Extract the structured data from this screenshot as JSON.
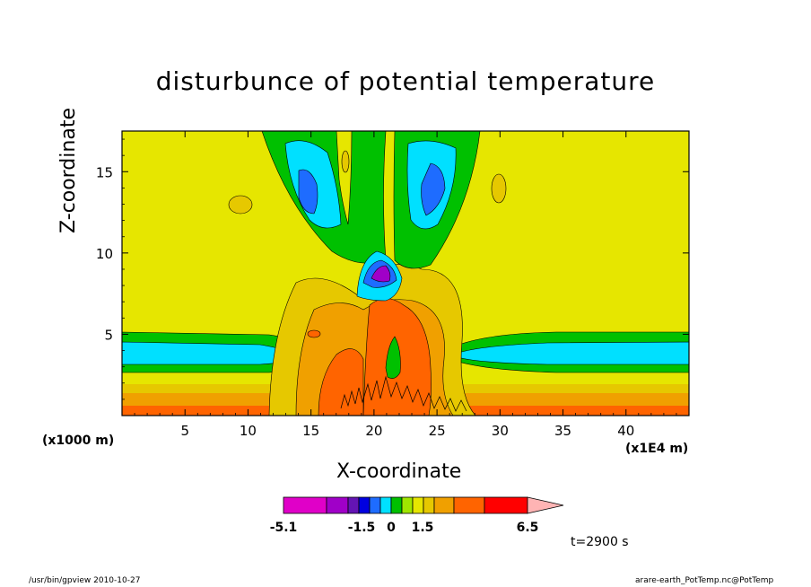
{
  "chart_data": {
    "type": "contour",
    "title": "disturbunce of potential temperature",
    "xlabel": "X-coordinate",
    "ylabel": "Z-coordinate",
    "x_multiplier_label": "(x1000 m)",
    "x_unit_label": "(x1E4 m)",
    "time_label": "t=2900 s",
    "xlim": [
      0,
      45
    ],
    "ylim": [
      0,
      17.5
    ],
    "xticks": [
      5,
      10,
      15,
      20,
      25,
      30,
      35,
      40
    ],
    "yticks": [
      5,
      10,
      15
    ],
    "colorbar": {
      "colors": [
        "#e000c8",
        "#a000c8",
        "#6414b4",
        "#0000e0",
        "#1e6cff",
        "#00e0ff",
        "#00c000",
        "#a0e600",
        "#e6e600",
        "#e6c800",
        "#f0a000",
        "#ff6400",
        "#ff0000",
        "#ff7878",
        "#ffb4b4"
      ],
      "tick_labels": [
        "-5.1",
        "-1.5",
        "0",
        "1.5",
        "6.5"
      ]
    },
    "features": [
      {
        "kind": "cold_band",
        "z_range": [
          3,
          5.5
        ],
        "x_left": [
          0,
          14
        ],
        "x_right": [
          28,
          45
        ]
      },
      {
        "kind": "warm_plume",
        "x_center": 21.5,
        "z_top": 9
      },
      {
        "kind": "cold_lobes_upper",
        "x_centers": [
          15,
          25.5
        ],
        "z_center": 14
      }
    ]
  },
  "footer": {
    "left": "/usr/bin/gpview  2010-10-27",
    "right": "arare-earth_PotTemp.nc@PotTemp"
  }
}
